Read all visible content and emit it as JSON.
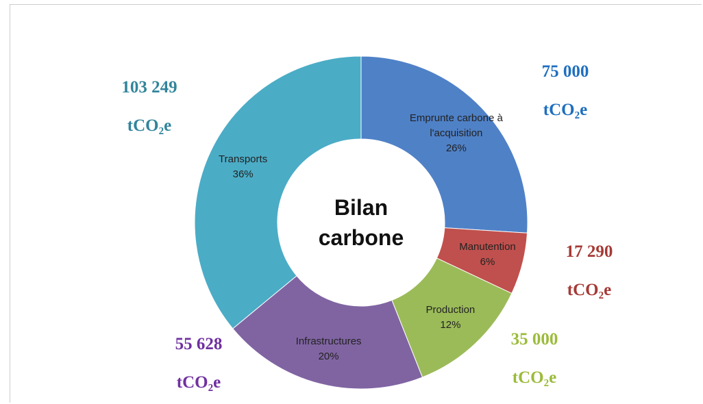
{
  "chart_data": {
    "type": "donut",
    "title": "Bilan carbone",
    "categories": [
      "Emprunte carbone à l'acquisition",
      "Manutention",
      "Production",
      "Infrastructures",
      "Transports"
    ],
    "values": [
      26,
      6,
      12,
      20,
      36
    ],
    "value_labels": [
      "26%",
      "6%",
      "12%",
      "20%",
      "36%"
    ],
    "colors": [
      "#4f81c7",
      "#c0504d",
      "#9bbb59",
      "#8064a2",
      "#4bacc6"
    ],
    "emissions": [
      75000,
      17290,
      35000,
      55628,
      103249
    ],
    "emission_labels": [
      "75 000",
      "17 290",
      "35 000",
      "55 628",
      "103 249"
    ],
    "emission_colors": [
      "#1f6fbf",
      "#a53a36",
      "#9bbb3a",
      "#7030a0",
      "#31859c"
    ],
    "unit": "tCO₂e"
  }
}
